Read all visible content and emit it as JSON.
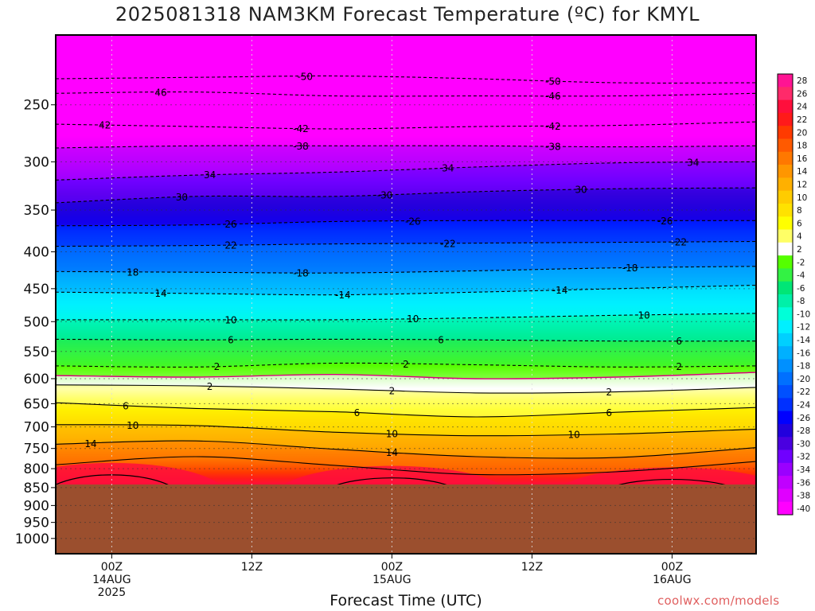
{
  "title": "2025081318 NAM3KM Forecast Temperature (ºC) for KMYL",
  "credit": "coolwx.com/models",
  "chart_data": {
    "type": "heatmap",
    "xlabel": "Forecast Time (UTC)",
    "ylabel": "",
    "x_range_hours": [
      -4,
      46
    ],
    "y_range_hpa": [
      200,
      1050
    ],
    "y_scale": "log",
    "y_ticks": [
      250,
      300,
      350,
      400,
      450,
      500,
      550,
      600,
      650,
      700,
      750,
      800,
      850,
      900,
      950,
      1000
    ],
    "x_ticks": [
      {
        "hour": 0,
        "lines": [
          "00Z",
          "14AUG",
          "2025"
        ]
      },
      {
        "hour": 10,
        "lines": [
          "12Z"
        ]
      },
      {
        "hour": 20,
        "lines": [
          "00Z",
          "15AUG"
        ]
      },
      {
        "hour": 30,
        "lines": [
          "12Z"
        ]
      },
      {
        "hour": 40,
        "lines": [
          "00Z",
          "16AUG"
        ]
      }
    ],
    "grid": true,
    "below_ground_pressure_hpa": 850,
    "legend_position": "right colorbar",
    "colorbar_levels": [
      28,
      26,
      24,
      22,
      20,
      18,
      16,
      14,
      12,
      10,
      8,
      6,
      4,
      2,
      -2,
      -4,
      -6,
      -8,
      -10,
      -12,
      -14,
      -16,
      -18,
      -20,
      -22,
      -24,
      -26,
      -28,
      -30,
      -32,
      -34,
      -36,
      -38,
      -40
    ],
    "colorbar_colors": [
      "#ff1493",
      "#ff2a6a",
      "#ff0f3c",
      "#ff1a1a",
      "#ff3a00",
      "#ff5a00",
      "#ff7800",
      "#ff9600",
      "#ffb000",
      "#ffcc00",
      "#ffe200",
      "#ffff00",
      "#ffff66",
      "#ffffff",
      "#55ff00",
      "#33f244",
      "#00e676",
      "#00f0a8",
      "#00ffd8",
      "#00f0ff",
      "#00d0ff",
      "#00b0ff",
      "#0090ff",
      "#0070ff",
      "#0050ff",
      "#0030ff",
      "#0000ff",
      "#2200dd",
      "#4a00e0",
      "#7000ff",
      "#9a00ff",
      "#c000ff",
      "#e000ff",
      "#ff00ff"
    ],
    "isotherms": [
      {
        "value": -50,
        "labels": [
          {
            "hour": 13.8,
            "text": "-50"
          },
          {
            "hour": 31.5,
            "text": "-50"
          }
        ],
        "pressure": [
          230,
          229,
          228,
          230,
          233,
          233
        ]
      },
      {
        "value": -46,
        "labels": [
          {
            "hour": 3.5,
            "text": "46"
          },
          {
            "hour": 31.5,
            "text": "-46"
          }
        ],
        "pressure": [
          241,
          240,
          243,
          243,
          243,
          241
        ]
      },
      {
        "value": -42,
        "labels": [
          {
            "hour": -0.5,
            "text": "42"
          },
          {
            "hour": 13.5,
            "text": "-42"
          },
          {
            "hour": 31.5,
            "text": "-42"
          }
        ],
        "pressure": [
          266,
          268,
          270,
          268,
          267,
          264
        ]
      },
      {
        "value": -38,
        "labels": [
          {
            "hour": 13.5,
            "text": "-38"
          },
          {
            "hour": 31.5,
            "text": "-38"
          }
        ],
        "pressure": [
          287,
          285,
          285,
          285,
          286,
          285
        ]
      },
      {
        "value": -34,
        "labels": [
          {
            "hour": 7,
            "text": "34"
          },
          {
            "hour": 24,
            "text": "34"
          },
          {
            "hour": 41.5,
            "text": "34"
          }
        ],
        "pressure": [
          318,
          313,
          310,
          305,
          301,
          300
        ]
      },
      {
        "value": -30,
        "labels": [
          {
            "hour": 5,
            "text": "30"
          },
          {
            "hour": 19.5,
            "text": "-30"
          },
          {
            "hour": 33.5,
            "text": "30"
          }
        ],
        "pressure": [
          342,
          335,
          335,
          330,
          327,
          326
        ]
      },
      {
        "value": -26,
        "labels": [
          {
            "hour": 8.5,
            "text": "26"
          },
          {
            "hour": 21.5,
            "text": "-26"
          },
          {
            "hour": 39.5,
            "text": "-26"
          }
        ],
        "pressure": [
          368,
          367,
          363,
          362,
          362,
          362
        ]
      },
      {
        "value": -22,
        "labels": [
          {
            "hour": 8.5,
            "text": "22"
          },
          {
            "hour": 24,
            "text": "-22"
          },
          {
            "hour": 40.5,
            "text": "-22"
          }
        ],
        "pressure": [
          393,
          392,
          390,
          389,
          388,
          387
        ]
      },
      {
        "value": -18,
        "labels": [
          {
            "hour": 1.5,
            "text": "18"
          },
          {
            "hour": 13.5,
            "text": "-18"
          },
          {
            "hour": 37,
            "text": "-18"
          }
        ],
        "pressure": [
          426,
          427,
          428,
          425,
          421,
          419
        ]
      },
      {
        "value": -14,
        "labels": [
          {
            "hour": 3.5,
            "text": "14"
          },
          {
            "hour": 16.5,
            "text": "-14"
          },
          {
            "hour": 32,
            "text": "-14"
          }
        ],
        "pressure": [
          455,
          457,
          459,
          455,
          450,
          445
        ]
      },
      {
        "value": -10,
        "labels": [
          {
            "hour": 8.5,
            "text": "10"
          },
          {
            "hour": 21.5,
            "text": "10"
          },
          {
            "hour": 38,
            "text": "10"
          }
        ],
        "pressure": [
          497,
          497,
          497,
          494,
          490,
          487
        ]
      },
      {
        "value": -6,
        "labels": [
          {
            "hour": 8.5,
            "text": "6"
          },
          {
            "hour": 23.5,
            "text": "6"
          },
          {
            "hour": 40.5,
            "text": "6"
          }
        ],
        "pressure": [
          529,
          530,
          529,
          530,
          532,
          532
        ]
      },
      {
        "value": -2,
        "labels": [
          {
            "hour": 7.5,
            "text": "2"
          },
          {
            "hour": 21,
            "text": "2"
          },
          {
            "hour": 40.5,
            "text": "2"
          }
        ],
        "pressure": [
          576,
          578,
          571,
          574,
          578,
          576
        ]
      },
      {
        "value": 0,
        "labels": [],
        "pressure": [
          594,
          597,
          592,
          600,
          597,
          588
        ]
      },
      {
        "value": 2,
        "labels": [
          {
            "hour": 7,
            "text": "2"
          },
          {
            "hour": 20,
            "text": "2"
          },
          {
            "hour": 35.5,
            "text": "2"
          }
        ],
        "pressure": [
          612,
          614,
          620,
          628,
          626,
          617
        ]
      },
      {
        "value": 6,
        "labels": [
          {
            "hour": 1,
            "text": "6"
          },
          {
            "hour": 17.5,
            "text": "6"
          },
          {
            "hour": 35.5,
            "text": "6"
          }
        ],
        "pressure": [
          648,
          660,
          667,
          678,
          668,
          658
        ]
      },
      {
        "value": 10,
        "labels": [
          {
            "hour": 1.5,
            "text": "10"
          },
          {
            "hour": 20,
            "text": "10"
          },
          {
            "hour": 33,
            "text": "10"
          }
        ],
        "pressure": [
          695,
          697,
          712,
          720,
          716,
          705
        ]
      },
      {
        "value": 14,
        "labels": [
          {
            "hour": -1.5,
            "text": "14"
          },
          {
            "hour": 20,
            "text": "14"
          }
        ],
        "pressure": [
          740,
          732,
          752,
          770,
          772,
          748
        ]
      },
      {
        "value": 18,
        "labels": [],
        "pressure": [
          790,
          770,
          792,
          815,
          808,
          782
        ]
      }
    ],
    "warm_cores": [
      {
        "center_hour": 0,
        "value": 24,
        "top_pressure_hpa": 765
      },
      {
        "center_hour": 20,
        "value": 24,
        "top_pressure_hpa": 775
      },
      {
        "center_hour": 40,
        "value": 24,
        "top_pressure_hpa": 780
      }
    ]
  }
}
